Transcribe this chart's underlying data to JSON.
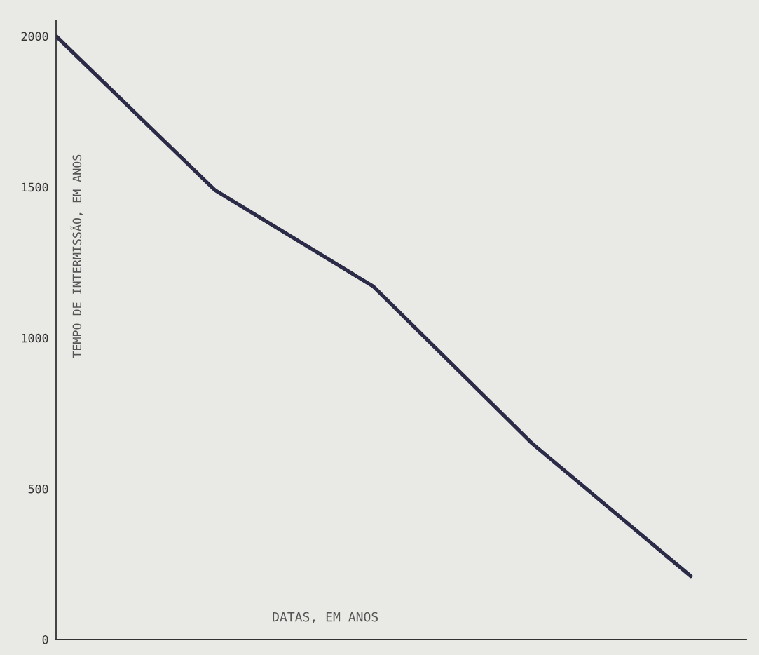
{
  "chart_data": {
    "type": "line",
    "xlabel": "DATAS, EM ANOS",
    "ylabel": "TEMPO DE INTERMISSÃO, EM ANOS",
    "categories": [
      null,
      null,
      null,
      null,
      null
    ],
    "series": [
      {
        "color": "#2b2b48",
        "values": [
          2000,
          1490,
          1170,
          650,
          210
        ]
      }
    ],
    "ylim": [
      0,
      2050
    ],
    "yticks": [
      0,
      500,
      1000,
      1500,
      2000
    ],
    "grid": false,
    "marker": "none",
    "line_style": "solid"
  }
}
